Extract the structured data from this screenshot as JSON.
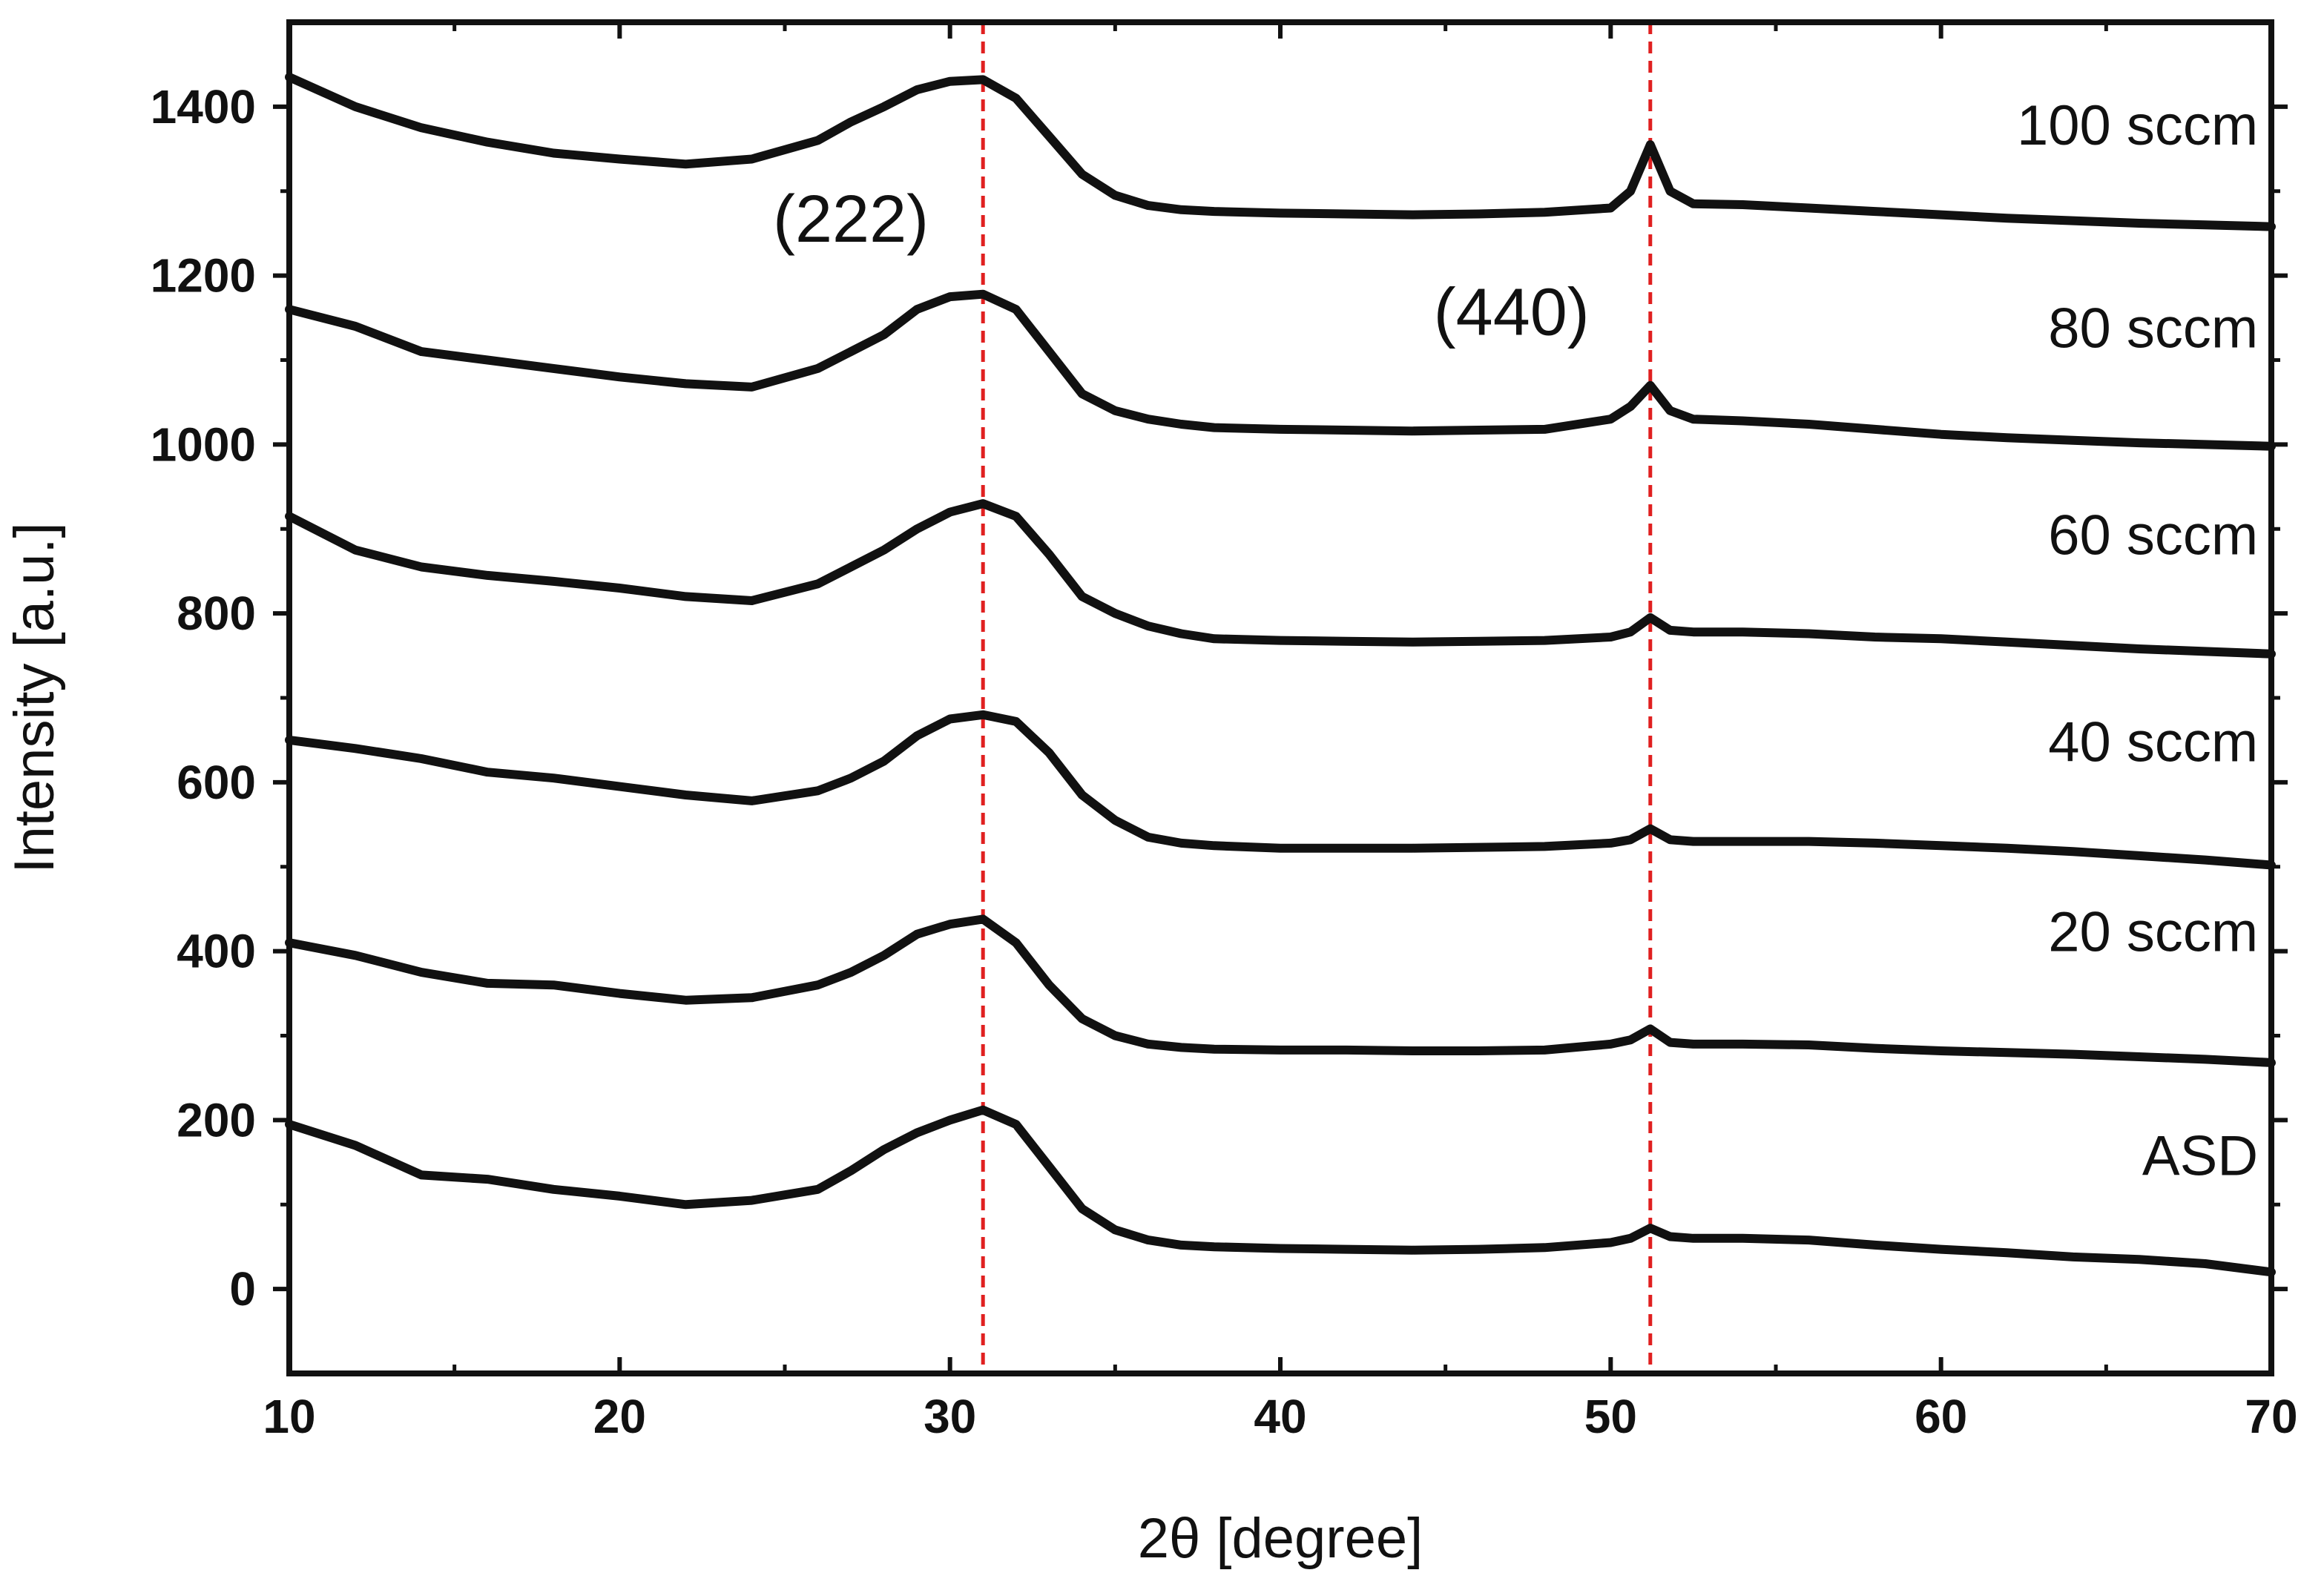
{
  "chart_data": {
    "type": "line",
    "xlabel": "2θ [degree]",
    "ylabel": "Intensity [a.u.]",
    "xlim": [
      10,
      70
    ],
    "ylim": [
      -100,
      1500
    ],
    "x_ticks": [
      "10",
      "20",
      "30",
      "40",
      "50",
      "60",
      "70"
    ],
    "y_ticks": [
      "0",
      "200",
      "400",
      "600",
      "800",
      "1000",
      "1200",
      "1400"
    ],
    "grid": false,
    "line_color": "#111111",
    "reference_line_color": "#e02020",
    "reference_lines": [
      31.0,
      51.2
    ],
    "annotations": [
      {
        "text": "(222)",
        "x": 27.0,
        "y": 1240
      },
      {
        "text": "(440)",
        "x": 47.0,
        "y": 1130
      }
    ],
    "series": [
      {
        "name": "ASD",
        "label_at": [
          69.6,
          135
        ],
        "x": [
          10,
          12,
          14,
          16,
          18,
          20,
          22,
          24,
          26,
          27,
          28,
          29,
          30,
          31,
          32,
          33,
          34,
          35,
          36,
          37,
          38,
          40,
          42,
          44,
          46,
          48,
          50,
          50.6,
          51.2,
          51.8,
          52.5,
          54,
          56,
          58,
          60,
          62,
          64,
          66,
          68,
          70
        ],
        "values": [
          195,
          170,
          135,
          130,
          118,
          110,
          100,
          105,
          118,
          140,
          165,
          185,
          200,
          212,
          195,
          145,
          95,
          70,
          58,
          52,
          50,
          48,
          47,
          46,
          47,
          49,
          55,
          60,
          72,
          62,
          60,
          60,
          58,
          52,
          47,
          43,
          38,
          35,
          30,
          20
        ]
      },
      {
        "name": "20 sccm",
        "label_at": [
          69.6,
          400
        ],
        "x": [
          10,
          12,
          14,
          16,
          18,
          20,
          22,
          24,
          26,
          27,
          28,
          29,
          30,
          31,
          32,
          33,
          34,
          35,
          36,
          37,
          38,
          40,
          42,
          44,
          46,
          48,
          50,
          50.6,
          51.2,
          51.8,
          52.5,
          54,
          56,
          58,
          60,
          62,
          64,
          66,
          68,
          70
        ],
        "values": [
          410,
          395,
          375,
          362,
          360,
          350,
          342,
          345,
          360,
          375,
          395,
          420,
          432,
          438,
          410,
          360,
          320,
          300,
          290,
          286,
          284,
          283,
          283,
          282,
          282,
          283,
          290,
          295,
          308,
          292,
          290,
          290,
          289,
          285,
          282,
          280,
          278,
          275,
          272,
          268
        ]
      },
      {
        "name": "40 sccm",
        "label_at": [
          69.6,
          625
        ],
        "x": [
          10,
          12,
          14,
          16,
          18,
          20,
          22,
          24,
          26,
          27,
          28,
          29,
          30,
          31,
          32,
          33,
          34,
          35,
          36,
          37,
          38,
          40,
          42,
          44,
          46,
          48,
          50,
          50.6,
          51.2,
          51.8,
          52.5,
          54,
          56,
          58,
          60,
          62,
          64,
          66,
          68,
          70
        ],
        "values": [
          650,
          640,
          628,
          612,
          605,
          595,
          585,
          578,
          590,
          605,
          625,
          655,
          675,
          680,
          672,
          635,
          585,
          555,
          535,
          528,
          525,
          522,
          522,
          522,
          523,
          524,
          528,
          532,
          545,
          532,
          530,
          530,
          530,
          528,
          525,
          522,
          518,
          513,
          508,
          502
        ]
      },
      {
        "name": "60 sccm",
        "label_at": [
          69.6,
          870
        ],
        "x": [
          10,
          12,
          14,
          16,
          18,
          20,
          22,
          24,
          26,
          27,
          28,
          29,
          30,
          31,
          32,
          33,
          34,
          35,
          36,
          37,
          38,
          40,
          42,
          44,
          46,
          48,
          50,
          50.6,
          51.2,
          51.8,
          52.5,
          54,
          56,
          58,
          60,
          62,
          64,
          66,
          68,
          70
        ],
        "values": [
          915,
          875,
          855,
          845,
          838,
          830,
          820,
          815,
          835,
          855,
          875,
          900,
          920,
          930,
          915,
          870,
          820,
          800,
          785,
          776,
          770,
          768,
          767,
          766,
          767,
          768,
          772,
          778,
          795,
          780,
          778,
          778,
          776,
          772,
          770,
          766,
          762,
          758,
          755,
          752
        ]
      },
      {
        "name": "80 sccm",
        "label_at": [
          69.6,
          1115
        ],
        "x": [
          10,
          12,
          14,
          16,
          18,
          20,
          22,
          24,
          26,
          27,
          28,
          29,
          30,
          31,
          32,
          33,
          34,
          35,
          36,
          37,
          38,
          40,
          42,
          44,
          46,
          48,
          50,
          50.6,
          51.2,
          51.8,
          52.5,
          54,
          56,
          58,
          60,
          62,
          64,
          66,
          68,
          70
        ],
        "values": [
          1160,
          1140,
          1110,
          1100,
          1090,
          1080,
          1072,
          1068,
          1090,
          1110,
          1130,
          1160,
          1175,
          1178,
          1160,
          1110,
          1060,
          1040,
          1030,
          1024,
          1020,
          1018,
          1017,
          1016,
          1017,
          1018,
          1030,
          1045,
          1070,
          1040,
          1030,
          1028,
          1024,
          1018,
          1012,
          1008,
          1005,
          1002,
          1000,
          998
        ]
      },
      {
        "name": "100 sccm",
        "label_at": [
          69.6,
          1355
        ],
        "x": [
          10,
          12,
          14,
          16,
          18,
          20,
          22,
          24,
          26,
          27,
          28,
          29,
          30,
          31,
          32,
          33,
          34,
          35,
          36,
          37,
          38,
          40,
          42,
          44,
          46,
          48,
          50,
          50.6,
          51.2,
          51.8,
          52.5,
          54,
          56,
          58,
          60,
          62,
          64,
          66,
          68,
          70
        ],
        "values": [
          1435,
          1400,
          1375,
          1358,
          1345,
          1338,
          1332,
          1338,
          1360,
          1382,
          1400,
          1420,
          1430,
          1432,
          1410,
          1365,
          1320,
          1295,
          1283,
          1278,
          1276,
          1274,
          1273,
          1272,
          1273,
          1275,
          1280,
          1300,
          1355,
          1300,
          1285,
          1284,
          1280,
          1276,
          1272,
          1268,
          1265,
          1262,
          1260,
          1258
        ]
      }
    ]
  }
}
